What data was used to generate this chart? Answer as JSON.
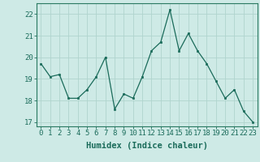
{
  "x": [
    0,
    1,
    2,
    3,
    4,
    5,
    6,
    7,
    8,
    9,
    10,
    11,
    12,
    13,
    14,
    15,
    16,
    17,
    18,
    19,
    20,
    21,
    22,
    23
  ],
  "y": [
    19.7,
    19.1,
    19.2,
    18.1,
    18.1,
    18.5,
    19.1,
    20.0,
    17.6,
    18.3,
    18.1,
    19.1,
    20.3,
    20.7,
    22.2,
    20.3,
    21.1,
    20.3,
    19.7,
    18.9,
    18.1,
    18.5,
    17.5,
    17.0
  ],
  "line_color": "#1a6b5a",
  "marker_color": "#1a6b5a",
  "bg_color": "#ceeae6",
  "grid_color": "#b0d4ce",
  "xlabel": "Humidex (Indice chaleur)",
  "ylim": [
    16.8,
    22.5
  ],
  "xlim": [
    -0.5,
    23.5
  ],
  "yticks": [
    17,
    18,
    19,
    20,
    21,
    22
  ],
  "xticks": [
    0,
    1,
    2,
    3,
    4,
    5,
    6,
    7,
    8,
    9,
    10,
    11,
    12,
    13,
    14,
    15,
    16,
    17,
    18,
    19,
    20,
    21,
    22,
    23
  ],
  "axis_color": "#2a7a62",
  "tick_color": "#1a6b5a",
  "label_color": "#1a6b5a",
  "font_size": 6.5,
  "xlabel_fontsize": 7.5
}
